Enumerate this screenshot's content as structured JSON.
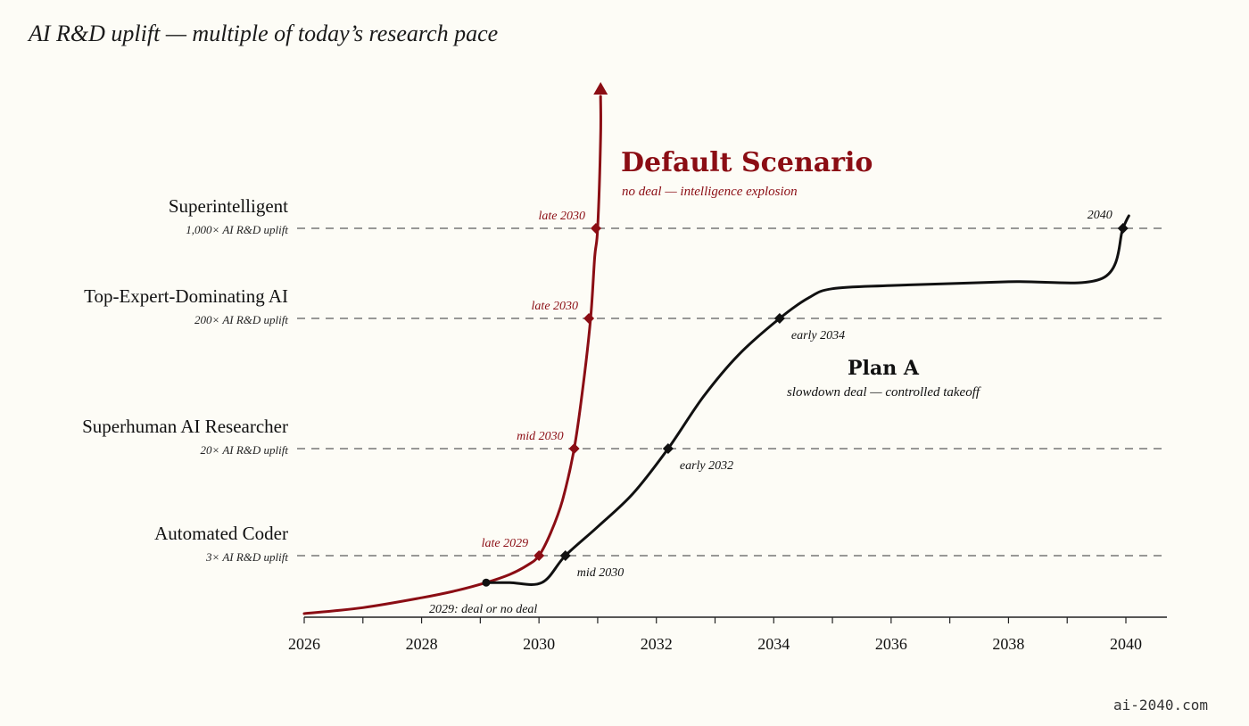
{
  "chart_data": {
    "type": "line",
    "title": "AI R&D uplift — multiple of today’s research pace",
    "x_ticks": [
      2026,
      2028,
      2030,
      2032,
      2034,
      2036,
      2038,
      2040
    ],
    "xlim": [
      2026,
      2040.5
    ],
    "levels": [
      {
        "name": "Automated Coder",
        "uplift_label": "3× AI R&D uplift",
        "uplift": 3
      },
      {
        "name": "Superhuman AI Researcher",
        "uplift_label": "20× AI R&D uplift",
        "uplift": 20
      },
      {
        "name": "Top-Expert-Dominating AI",
        "uplift_label": "200× AI R&D uplift",
        "uplift": 200
      },
      {
        "name": "Superintelligent",
        "uplift_label": "1,000× AI R&D uplift",
        "uplift": 1000
      }
    ],
    "series": [
      {
        "name": "Default Scenario",
        "subtitle": "no deal — intelligence explosion",
        "color": "#8b0d14",
        "path": [
          [
            2026.0,
            1.0
          ],
          [
            2027.0,
            1.12
          ],
          [
            2028.0,
            1.35
          ],
          [
            2028.6,
            1.55
          ],
          [
            2029.1,
            1.8
          ],
          [
            2029.5,
            2.1
          ],
          [
            2029.8,
            2.5
          ],
          [
            2030.0,
            3
          ],
          [
            2030.2,
            4.5
          ],
          [
            2030.4,
            8
          ],
          [
            2030.6,
            20
          ],
          [
            2030.75,
            60
          ],
          [
            2030.88,
            200
          ],
          [
            2030.95,
            600
          ],
          [
            2031.0,
            1000
          ],
          [
            2031.05,
            5000
          ]
        ],
        "milestones": [
          {
            "x": 2030.0,
            "level": 0,
            "label": "late 2029"
          },
          {
            "x": 2030.6,
            "level": 1,
            "label": "mid 2030"
          },
          {
            "x": 2030.85,
            "level": 2,
            "label": "late 2030"
          },
          {
            "x": 2030.97,
            "level": 3,
            "label": "late 2030"
          }
        ]
      },
      {
        "name": "Plan A",
        "subtitle": "slowdown deal — controlled takeoff",
        "color": "#111111",
        "path": [
          [
            2029.1,
            1.8
          ],
          [
            2029.5,
            1.8
          ],
          [
            2030.05,
            1.8
          ],
          [
            2030.45,
            3
          ],
          [
            2031.0,
            5
          ],
          [
            2031.6,
            9
          ],
          [
            2032.2,
            20
          ],
          [
            2032.8,
            50
          ],
          [
            2033.4,
            105
          ],
          [
            2034.1,
            200
          ],
          [
            2034.6,
            290
          ],
          [
            2035.0,
            340
          ],
          [
            2036.0,
            360
          ],
          [
            2038.0,
            385
          ],
          [
            2039.6,
            410
          ],
          [
            2039.95,
            1000
          ],
          [
            2040.05,
            1250
          ]
        ],
        "milestones": [
          {
            "x": 2030.45,
            "level": 0,
            "label": "mid 2030"
          },
          {
            "x": 2032.2,
            "level": 1,
            "label": "early 2032"
          },
          {
            "x": 2034.1,
            "level": 2,
            "label": "early 2034"
          },
          {
            "x": 2039.95,
            "level": 3,
            "label": "2040"
          }
        ]
      }
    ],
    "branch_point": {
      "x": 2029.1,
      "label": "2029: deal or no deal"
    }
  },
  "footer": "ai-2040.com"
}
